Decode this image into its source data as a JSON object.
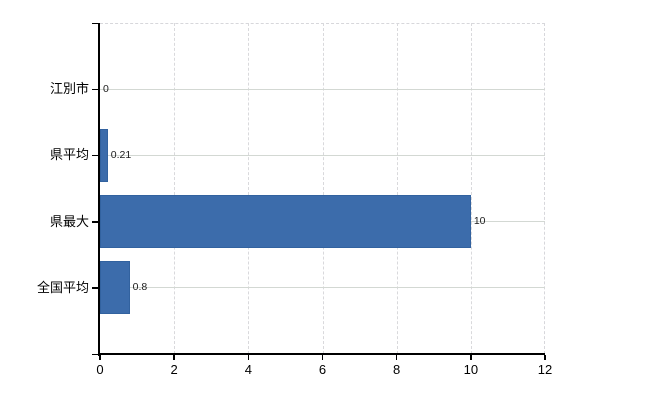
{
  "chart_data": {
    "type": "bar",
    "orientation": "horizontal",
    "title": "",
    "categories": [
      "江別市",
      "県平均",
      "県最大",
      "全国平均"
    ],
    "values": [
      0,
      0.21,
      10,
      0.8
    ],
    "value_labels": [
      "0",
      "0.21",
      "10",
      "0.8"
    ],
    "x_ticks": [
      0,
      2,
      4,
      6,
      8,
      10,
      12
    ],
    "x_tick_labels": [
      "0",
      "2",
      "4",
      "6",
      "8",
      "10",
      "12"
    ],
    "xlim": [
      0,
      12
    ],
    "grid": "horizontal-solid-vertical-dashed",
    "legend": "none",
    "colors": {
      "bar": "#3c6cab",
      "bar_border": "#32629f",
      "grid_horizontal": "#d3d8d3",
      "grid_vertical": "#d9d9dc",
      "axis": "#000000",
      "value_label": "#1c1c1c",
      "tick_label": "#000000",
      "background": "#ffffff"
    }
  }
}
